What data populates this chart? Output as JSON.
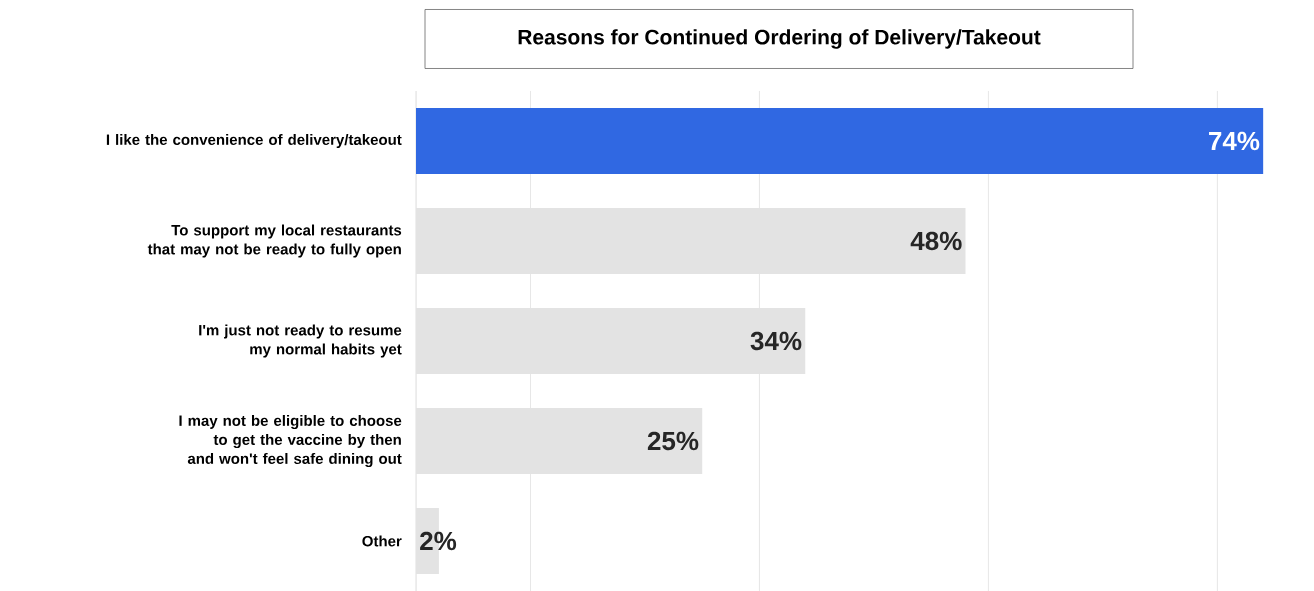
{
  "chart_data": {
    "type": "bar",
    "orientation": "horizontal",
    "title": "Reasons for Continued Ordering of Delivery/Takeout",
    "categories": [
      "I like the convenience of delivery/takeout",
      "To support my local restaurants that may not be ready to fully open",
      "I'm just not ready to resume my normal habits yet",
      "I may not be eligible to choose to get the vaccine by then and won't feel safe dining out",
      "Other"
    ],
    "values": [
      74,
      48,
      34,
      25,
      2
    ],
    "value_labels": [
      "74%",
      "48%",
      "34%",
      "25%",
      "2%"
    ],
    "colors": [
      "#3068e2",
      "#e3e3e3",
      "#e3e3e3",
      "#e3e3e3",
      "#e3e3e3"
    ],
    "xticks": [
      {
        "value": 10,
        "label": null
      },
      {
        "value": 30,
        "label": null
      },
      {
        "value": 50,
        "label": null
      },
      {
        "value": 70,
        "label": null
      }
    ],
    "grid": "x",
    "tick_labels": "y"
  }
}
